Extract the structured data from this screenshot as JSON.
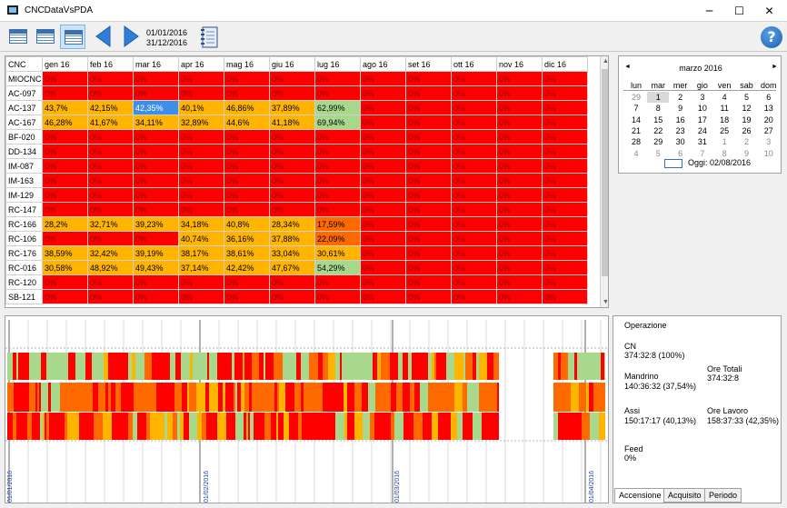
{
  "window": {
    "title": "CNCDataVsPDA",
    "minimize": "─",
    "maximize": "☐",
    "close": "✕"
  },
  "toolbar": {
    "date_from": "01/01/2016",
    "date_to": "31/12/2016",
    "help": "?"
  },
  "colors": {
    "red": "#ff0000",
    "orange": "#ffb400",
    "green": "#a8d88c",
    "dark_orange": "#ff6a00",
    "selected": "#3d8ee8"
  },
  "grid": {
    "header": [
      "CNC",
      "gen 16",
      "feb 16",
      "mar 16",
      "apr 16",
      "mag 16",
      "giu 16",
      "lug 16",
      "ago 16",
      "set 16",
      "ott 16",
      "nov 16",
      "dic 16"
    ],
    "rows": [
      {
        "name": "MIOCNC",
        "cells": [
          [
            "0%",
            "r"
          ],
          [
            "0%",
            "r"
          ],
          [
            "0%",
            "r"
          ],
          [
            "0%",
            "r"
          ],
          [
            "0%",
            "r"
          ],
          [
            "0%",
            "r"
          ],
          [
            "0%",
            "r"
          ],
          [
            "0%",
            "r"
          ],
          [
            "0%",
            "r"
          ],
          [
            "0%",
            "r"
          ],
          [
            "0%",
            "r"
          ],
          [
            "0%",
            "r"
          ]
        ]
      },
      {
        "name": "AC-097",
        "cells": [
          [
            "0%",
            "r"
          ],
          [
            "0%",
            "r"
          ],
          [
            "0%",
            "r"
          ],
          [
            "0%",
            "r"
          ],
          [
            "0%",
            "r"
          ],
          [
            "0%",
            "r"
          ],
          [
            "0%",
            "r"
          ],
          [
            "0%",
            "r"
          ],
          [
            "0%",
            "r"
          ],
          [
            "0%",
            "r"
          ],
          [
            "0%",
            "r"
          ],
          [
            "0%",
            "r"
          ]
        ]
      },
      {
        "name": "AC-137",
        "cells": [
          [
            "43,7%",
            "o"
          ],
          [
            "42,15%",
            "o"
          ],
          [
            "42,35%",
            "s"
          ],
          [
            "40,1%",
            "o"
          ],
          [
            "46,86%",
            "o"
          ],
          [
            "37,89%",
            "o"
          ],
          [
            "62,99%",
            "g"
          ],
          [
            "0%",
            "r"
          ],
          [
            "0%",
            "r"
          ],
          [
            "0%",
            "r"
          ],
          [
            "0%",
            "r"
          ],
          [
            "0%",
            "r"
          ]
        ]
      },
      {
        "name": "AC-167",
        "cells": [
          [
            "46,28%",
            "o"
          ],
          [
            "41,67%",
            "o"
          ],
          [
            "34,11%",
            "o"
          ],
          [
            "32,89%",
            "o"
          ],
          [
            "44,6%",
            "o"
          ],
          [
            "41,18%",
            "o"
          ],
          [
            "69,94%",
            "g"
          ],
          [
            "0%",
            "r"
          ],
          [
            "0%",
            "r"
          ],
          [
            "0%",
            "r"
          ],
          [
            "0%",
            "r"
          ],
          [
            "0%",
            "r"
          ]
        ]
      },
      {
        "name": "BF-020",
        "cells": [
          [
            "0%",
            "r"
          ],
          [
            "0%",
            "r"
          ],
          [
            "0%",
            "r"
          ],
          [
            "0%",
            "r"
          ],
          [
            "0%",
            "r"
          ],
          [
            "0%",
            "r"
          ],
          [
            "0%",
            "r"
          ],
          [
            "0%",
            "r"
          ],
          [
            "0%",
            "r"
          ],
          [
            "0%",
            "r"
          ],
          [
            "0%",
            "r"
          ],
          [
            "0%",
            "r"
          ]
        ]
      },
      {
        "name": "DD-134",
        "cells": [
          [
            "0%",
            "r"
          ],
          [
            "0%",
            "r"
          ],
          [
            "0%",
            "r"
          ],
          [
            "0%",
            "r"
          ],
          [
            "0%",
            "r"
          ],
          [
            "0%",
            "r"
          ],
          [
            "0%",
            "r"
          ],
          [
            "0%",
            "r"
          ],
          [
            "0%",
            "r"
          ],
          [
            "0%",
            "r"
          ],
          [
            "0%",
            "r"
          ],
          [
            "0%",
            "r"
          ]
        ]
      },
      {
        "name": "IM-087",
        "cells": [
          [
            "0%",
            "r"
          ],
          [
            "0%",
            "r"
          ],
          [
            "0%",
            "r"
          ],
          [
            "0%",
            "r"
          ],
          [
            "0%",
            "r"
          ],
          [
            "0%",
            "r"
          ],
          [
            "0%",
            "r"
          ],
          [
            "0%",
            "r"
          ],
          [
            "0%",
            "r"
          ],
          [
            "0%",
            "r"
          ],
          [
            "0%",
            "r"
          ],
          [
            "0%",
            "r"
          ]
        ]
      },
      {
        "name": "IM-163",
        "cells": [
          [
            "0%",
            "r"
          ],
          [
            "0%",
            "r"
          ],
          [
            "0%",
            "r"
          ],
          [
            "0%",
            "r"
          ],
          [
            "0%",
            "r"
          ],
          [
            "0%",
            "r"
          ],
          [
            "0%",
            "r"
          ],
          [
            "0%",
            "r"
          ],
          [
            "0%",
            "r"
          ],
          [
            "0%",
            "r"
          ],
          [
            "0%",
            "r"
          ],
          [
            "0%",
            "r"
          ]
        ]
      },
      {
        "name": "IM-129",
        "cells": [
          [
            "0%",
            "r"
          ],
          [
            "0%",
            "r"
          ],
          [
            "0%",
            "r"
          ],
          [
            "0%",
            "r"
          ],
          [
            "0%",
            "r"
          ],
          [
            "0%",
            "r"
          ],
          [
            "0%",
            "r"
          ],
          [
            "0%",
            "r"
          ],
          [
            "0%",
            "r"
          ],
          [
            "0%",
            "r"
          ],
          [
            "0%",
            "r"
          ],
          [
            "0%",
            "r"
          ]
        ]
      },
      {
        "name": "RC-147",
        "cells": [
          [
            "0%",
            "r"
          ],
          [
            "0%",
            "r"
          ],
          [
            "0%",
            "r"
          ],
          [
            "0%",
            "r"
          ],
          [
            "0%",
            "r"
          ],
          [
            "0%",
            "r"
          ],
          [
            "0%",
            "r"
          ],
          [
            "0%",
            "r"
          ],
          [
            "0%",
            "r"
          ],
          [
            "0%",
            "r"
          ],
          [
            "0%",
            "r"
          ],
          [
            "0%",
            "r"
          ]
        ]
      },
      {
        "name": "RC-166",
        "cells": [
          [
            "28,2%",
            "o"
          ],
          [
            "32,71%",
            "o"
          ],
          [
            "39,23%",
            "o"
          ],
          [
            "34,18%",
            "o"
          ],
          [
            "40,8%",
            "o"
          ],
          [
            "28,34%",
            "o"
          ],
          [
            "17,59%",
            "d"
          ],
          [
            "0%",
            "r"
          ],
          [
            "0%",
            "r"
          ],
          [
            "0%",
            "r"
          ],
          [
            "0%",
            "r"
          ],
          [
            "0%",
            "r"
          ]
        ]
      },
      {
        "name": "RC-106",
        "cells": [
          [
            "0%",
            "r"
          ],
          [
            "0%",
            "r"
          ],
          [
            "0%",
            "r"
          ],
          [
            "40,74%",
            "o"
          ],
          [
            "36,16%",
            "o"
          ],
          [
            "37,88%",
            "o"
          ],
          [
            "22,09%",
            "d"
          ],
          [
            "0%",
            "r"
          ],
          [
            "0%",
            "r"
          ],
          [
            "0%",
            "r"
          ],
          [
            "0%",
            "r"
          ],
          [
            "0%",
            "r"
          ]
        ]
      },
      {
        "name": "RC-176",
        "cells": [
          [
            "38,59%",
            "o"
          ],
          [
            "32,42%",
            "o"
          ],
          [
            "39,19%",
            "o"
          ],
          [
            "38,17%",
            "o"
          ],
          [
            "38,61%",
            "o"
          ],
          [
            "33,04%",
            "o"
          ],
          [
            "30,61%",
            "o"
          ],
          [
            "0%",
            "r"
          ],
          [
            "0%",
            "r"
          ],
          [
            "0%",
            "r"
          ],
          [
            "0%",
            "r"
          ],
          [
            "0%",
            "r"
          ]
        ]
      },
      {
        "name": "RC-016",
        "cells": [
          [
            "30,58%",
            "o"
          ],
          [
            "48,92%",
            "o"
          ],
          [
            "49,43%",
            "o"
          ],
          [
            "37,14%",
            "o"
          ],
          [
            "42,42%",
            "o"
          ],
          [
            "47,67%",
            "o"
          ],
          [
            "54,29%",
            "g"
          ],
          [
            "0%",
            "r"
          ],
          [
            "0%",
            "r"
          ],
          [
            "0%",
            "r"
          ],
          [
            "0%",
            "r"
          ],
          [
            "0%",
            "r"
          ]
        ]
      },
      {
        "name": "RC-120",
        "cells": [
          [
            "0%",
            "r"
          ],
          [
            "0%",
            "r"
          ],
          [
            "0%",
            "r"
          ],
          [
            "0%",
            "r"
          ],
          [
            "0%",
            "r"
          ],
          [
            "0%",
            "r"
          ],
          [
            "0%",
            "r"
          ],
          [
            "0%",
            "r"
          ],
          [
            "0%",
            "r"
          ],
          [
            "0%",
            "r"
          ],
          [
            "0%",
            "r"
          ],
          [
            "0%",
            "r"
          ]
        ]
      },
      {
        "name": "SB-121",
        "cells": [
          [
            "0%",
            "r"
          ],
          [
            "0%",
            "r"
          ],
          [
            "0%",
            "r"
          ],
          [
            "0%",
            "r"
          ],
          [
            "0%",
            "r"
          ],
          [
            "0%",
            "r"
          ],
          [
            "0%",
            "r"
          ],
          [
            "0%",
            "r"
          ],
          [
            "0%",
            "r"
          ],
          [
            "0%",
            "r"
          ],
          [
            "0%",
            "r"
          ],
          [
            "0%",
            "r"
          ]
        ]
      }
    ]
  },
  "calendar": {
    "title": "marzo 2016",
    "prev": "◄",
    "next": "►",
    "weekdays": [
      "lun",
      "mar",
      "mer",
      "gio",
      "ven",
      "sab",
      "dom"
    ],
    "weeks": [
      [
        [
          "29",
          1
        ],
        [
          "1",
          0
        ],
        [
          "2",
          0
        ],
        [
          "3",
          0
        ],
        [
          "4",
          0
        ],
        [
          "5",
          0
        ],
        [
          "6",
          0
        ]
      ],
      [
        [
          "7",
          0
        ],
        [
          "8",
          0
        ],
        [
          "9",
          0
        ],
        [
          "10",
          0
        ],
        [
          "11",
          0
        ],
        [
          "12",
          0
        ],
        [
          "13",
          0
        ]
      ],
      [
        [
          "14",
          0
        ],
        [
          "15",
          0
        ],
        [
          "16",
          0
        ],
        [
          "17",
          0
        ],
        [
          "18",
          0
        ],
        [
          "19",
          0
        ],
        [
          "20",
          0
        ]
      ],
      [
        [
          "21",
          0
        ],
        [
          "22",
          0
        ],
        [
          "23",
          0
        ],
        [
          "24",
          0
        ],
        [
          "25",
          0
        ],
        [
          "26",
          0
        ],
        [
          "27",
          0
        ]
      ],
      [
        [
          "28",
          0
        ],
        [
          "29",
          0
        ],
        [
          "30",
          0
        ],
        [
          "31",
          0
        ],
        [
          "1",
          1
        ],
        [
          "2",
          1
        ],
        [
          "3",
          1
        ]
      ],
      [
        [
          "4",
          1
        ],
        [
          "5",
          1
        ],
        [
          "6",
          1
        ],
        [
          "7",
          1
        ],
        [
          "8",
          1
        ],
        [
          "9",
          1
        ],
        [
          "10",
          1
        ]
      ]
    ],
    "selected_day": "1",
    "today_label": "Oggi: 02/08/2016"
  },
  "timeline": {
    "date_labels": [
      "01/01/2016",
      "01/02/2016",
      "01/03/2016",
      "01/04/2016"
    ]
  },
  "info": {
    "title": "Operazione",
    "cn_label": "CN",
    "cn_value": "374:32:8 (100%)",
    "mandrino_label": "Mandrino",
    "mandrino_value": "140:36:32 (37,54%)",
    "assi_label": "Assi",
    "assi_value": "150:17:17 (40,13%)",
    "feed_label": "Feed",
    "feed_value": "0%",
    "ore_totali_label": "Ore Totali",
    "ore_totali_value": "374:32:8",
    "ore_lavoro_label": "Ore Lavoro",
    "ore_lavoro_value": "158:37:33 (42,35%)"
  },
  "tabs": [
    "Accensione",
    "Acquisito",
    "Periodo"
  ]
}
